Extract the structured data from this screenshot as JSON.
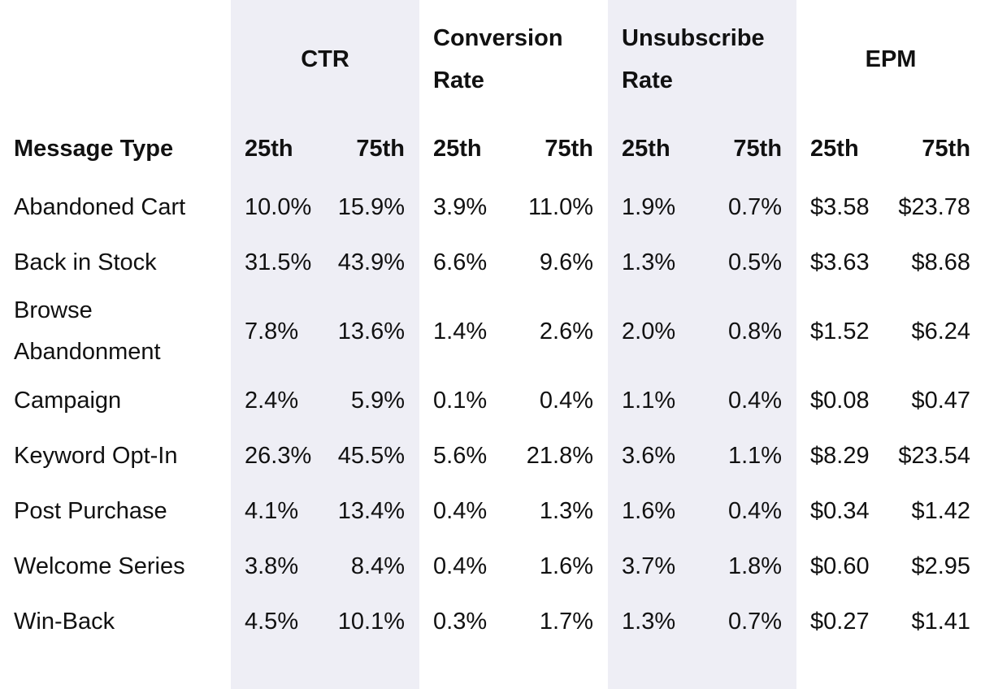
{
  "table": {
    "groups": [
      "CTR",
      "Conversion Rate",
      "Unsubscribe Rate",
      "EPM"
    ],
    "columns": [
      "Message Type",
      "25th",
      "75th",
      "25th",
      "75th",
      "25th",
      "75th",
      "25th",
      "75th"
    ],
    "rows": [
      [
        "Abandoned Cart",
        "10.0%",
        "15.9%",
        "3.9%",
        "11.0%",
        "1.9%",
        "0.7%",
        "$3.58",
        "$23.78"
      ],
      [
        "Back in Stock",
        "31.5%",
        "43.9%",
        "6.6%",
        "9.6%",
        "1.3%",
        "0.5%",
        "$3.63",
        "$8.68"
      ],
      [
        "Browse Abandonment",
        "7.8%",
        "13.6%",
        "1.4%",
        "2.6%",
        "2.0%",
        "0.8%",
        "$1.52",
        "$6.24"
      ],
      [
        "Campaign",
        "2.4%",
        "5.9%",
        "0.1%",
        "0.4%",
        "1.1%",
        "0.4%",
        "$0.08",
        "$0.47"
      ],
      [
        "Keyword Opt-In",
        "26.3%",
        "45.5%",
        "5.6%",
        "21.8%",
        "3.6%",
        "1.1%",
        "$8.29",
        "$23.54"
      ],
      [
        "Post Purchase",
        "4.1%",
        "13.4%",
        "0.4%",
        "1.3%",
        "1.6%",
        "0.4%",
        "$0.34",
        "$1.42"
      ],
      [
        "Welcome Series",
        "3.8%",
        "8.4%",
        "0.4%",
        "1.6%",
        "3.7%",
        "1.8%",
        "$0.60",
        "$2.95"
      ],
      [
        "Win-Back",
        "4.5%",
        "10.1%",
        "0.3%",
        "1.7%",
        "1.3%",
        "0.7%",
        "$0.27",
        "$1.41"
      ]
    ]
  }
}
